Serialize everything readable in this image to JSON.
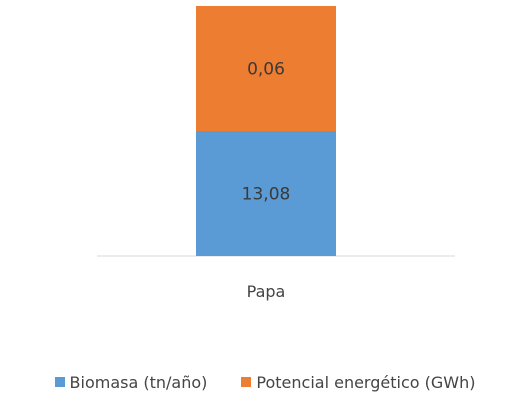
{
  "chart_data": {
    "type": "bar",
    "stacked": true,
    "categories": [
      "Papa"
    ],
    "series": [
      {
        "name": "Biomasa (tn/año)",
        "values": [
          13.08
        ],
        "labels": [
          "13,08"
        ],
        "color": "#5b9bd5"
      },
      {
        "name": "Potencial energético (GWh)",
        "values": [
          0.06
        ],
        "labels": [
          "0,06"
        ],
        "color": "#ed7d31"
      }
    ],
    "title": "",
    "xlabel": "",
    "ylabel": "",
    "grid": false,
    "legend_position": "bottom"
  }
}
